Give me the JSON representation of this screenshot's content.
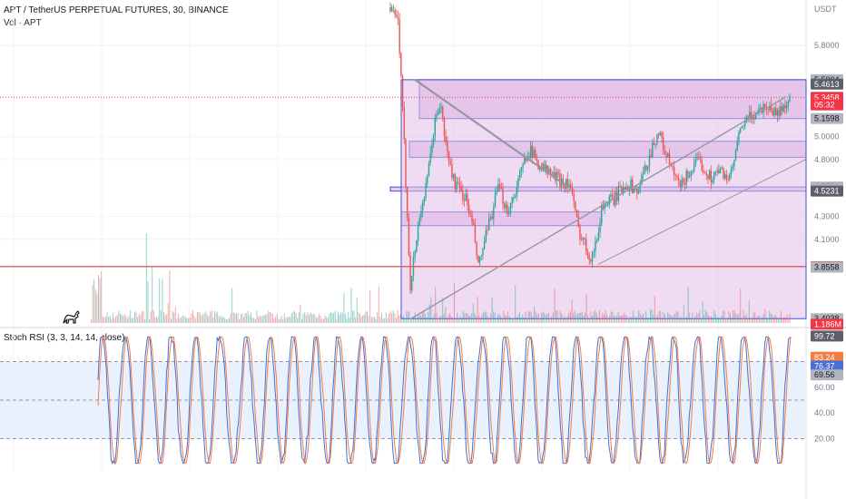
{
  "header": {
    "title": "APT / TetherUS PERPETUAL FUTURES, 30, BINANCE",
    "volume_label": "Vol · APT",
    "unit": "USDT"
  },
  "price_axis": {
    "ticks": [
      "5.8000",
      "5.0000",
      "4.8000",
      "4.3000",
      "4.1000"
    ],
    "badges": [
      {
        "text": "5.5004",
        "bg": "#b2b5be",
        "fg": "#131722",
        "value": 5.5004
      },
      {
        "text": "5.4613",
        "bg": "#5d606b",
        "fg": "#ffffff",
        "value": 5.4613
      },
      {
        "text": "5.3458",
        "bg": "#f23645",
        "fg": "#ffffff",
        "value": 5.3458
      },
      {
        "text": "05:32",
        "bg": "#f23645",
        "fg": "#ffffff",
        "value": 5.28
      },
      {
        "text": "5.1598",
        "bg": "#b2b5be",
        "fg": "#131722",
        "value": 5.1598
      },
      {
        "text": "4.5591",
        "bg": "#b2b5be",
        "fg": "#131722",
        "value": 4.5591
      },
      {
        "text": "4.5377",
        "bg": "#b2b5be",
        "fg": "#131722",
        "value": 4.5377
      },
      {
        "text": "4.5231",
        "bg": "#5d606b",
        "fg": "#ffffff",
        "value": 4.5231
      },
      {
        "text": "3.8608",
        "bg": "#f23645",
        "fg": "#ffffff",
        "value": 3.8608
      },
      {
        "text": "3.8558",
        "bg": "#b2b5be",
        "fg": "#131722",
        "value": 3.8558
      },
      {
        "text": "3.4038",
        "bg": "#b2b5be",
        "fg": "#131722",
        "value": 3.4038
      },
      {
        "text": "1.186M",
        "bg": "#f23645",
        "fg": "#ffffff",
        "value": 3.355
      }
    ]
  },
  "rsi": {
    "label": "Stoch RSI (3, 3, 14, 14, close)",
    "ticks": [
      "60.00",
      "40.00",
      "20.00"
    ],
    "badges": [
      {
        "text": "99.72",
        "bg": "#5d606b",
        "fg": "#ffffff",
        "value": 99.72
      },
      {
        "text": "83.24",
        "bg": "#f57c42",
        "fg": "#ffffff",
        "value": 83.24
      },
      {
        "text": "76.37",
        "bg": "#4a6fd8",
        "fg": "#ffffff",
        "value": 76.37
      },
      {
        "text": "69.56",
        "bg": "#b2b5be",
        "fg": "#131722",
        "value": 69.56
      }
    ]
  },
  "colors": {
    "up": "#26a69a",
    "down": "#ef5350",
    "zone_fill": "#e1bee7",
    "zone_border": "#3f51d4",
    "support_line": "#e53935",
    "rsi_k": "#3f6fd8",
    "rsi_d": "#f57c42",
    "rsi_band": "#e3eefc"
  },
  "chart_data": {
    "type": "candlestick",
    "symbol": "APT / TetherUS PERPETUAL FUTURES",
    "timeframe": "30",
    "exchange": "BINANCE",
    "price_range": [
      3.35,
      6.2
    ],
    "price_path": [
      {
        "x": 0.0,
        "close": 6.1
      },
      {
        "x": 0.02,
        "close": 6.0
      },
      {
        "x": 0.035,
        "close": 4.9
      },
      {
        "x": 0.05,
        "close": 3.7
      },
      {
        "x": 0.075,
        "close": 4.35
      },
      {
        "x": 0.09,
        "close": 4.55
      },
      {
        "x": 0.11,
        "close": 5.1
      },
      {
        "x": 0.125,
        "close": 5.3
      },
      {
        "x": 0.14,
        "close": 4.9
      },
      {
        "x": 0.16,
        "close": 4.6
      },
      {
        "x": 0.19,
        "close": 4.45
      },
      {
        "x": 0.21,
        "close": 4.15
      },
      {
        "x": 0.22,
        "close": 3.85
      },
      {
        "x": 0.245,
        "close": 4.2
      },
      {
        "x": 0.27,
        "close": 4.55
      },
      {
        "x": 0.295,
        "close": 4.35
      },
      {
        "x": 0.32,
        "close": 4.6
      },
      {
        "x": 0.345,
        "close": 4.9
      },
      {
        "x": 0.375,
        "close": 4.75
      },
      {
        "x": 0.41,
        "close": 4.65
      },
      {
        "x": 0.45,
        "close": 4.58
      },
      {
        "x": 0.47,
        "close": 4.2
      },
      {
        "x": 0.5,
        "close": 3.95
      },
      {
        "x": 0.515,
        "close": 4.05
      },
      {
        "x": 0.53,
        "close": 4.4
      },
      {
        "x": 0.56,
        "close": 4.45
      },
      {
        "x": 0.59,
        "close": 4.6
      },
      {
        "x": 0.62,
        "close": 4.52
      },
      {
        "x": 0.65,
        "close": 4.85
      },
      {
        "x": 0.67,
        "close": 5.05
      },
      {
        "x": 0.7,
        "close": 4.75
      },
      {
        "x": 0.725,
        "close": 4.55
      },
      {
        "x": 0.75,
        "close": 4.7
      },
      {
        "x": 0.775,
        "close": 4.78
      },
      {
        "x": 0.8,
        "close": 4.65
      },
      {
        "x": 0.83,
        "close": 4.7
      },
      {
        "x": 0.85,
        "close": 4.62
      },
      {
        "x": 0.88,
        "close": 5.1
      },
      {
        "x": 0.91,
        "close": 5.2
      },
      {
        "x": 0.94,
        "close": 5.28
      },
      {
        "x": 0.97,
        "close": 5.2
      },
      {
        "x": 1.0,
        "close": 5.3458
      }
    ],
    "zones": [
      {
        "from": 5.1598,
        "to": 5.5004
      },
      {
        "from": 4.82,
        "to": 4.96
      },
      {
        "from": 4.5231,
        "to": 4.5591
      },
      {
        "from": 4.22,
        "to": 4.34
      },
      {
        "from": 3.4038,
        "to": 5.5004
      }
    ],
    "lines": [
      {
        "name": "support",
        "value": 3.8608
      },
      {
        "name": "last",
        "value": 5.3458
      }
    ],
    "stoch_rsi": {
      "params": [
        3,
        3,
        14,
        14,
        "close"
      ],
      "range": [
        0,
        100
      ],
      "levels": [
        80,
        50,
        20
      ],
      "k_last": 76.37,
      "d_last": 83.24,
      "max_label": 99.72
    }
  }
}
